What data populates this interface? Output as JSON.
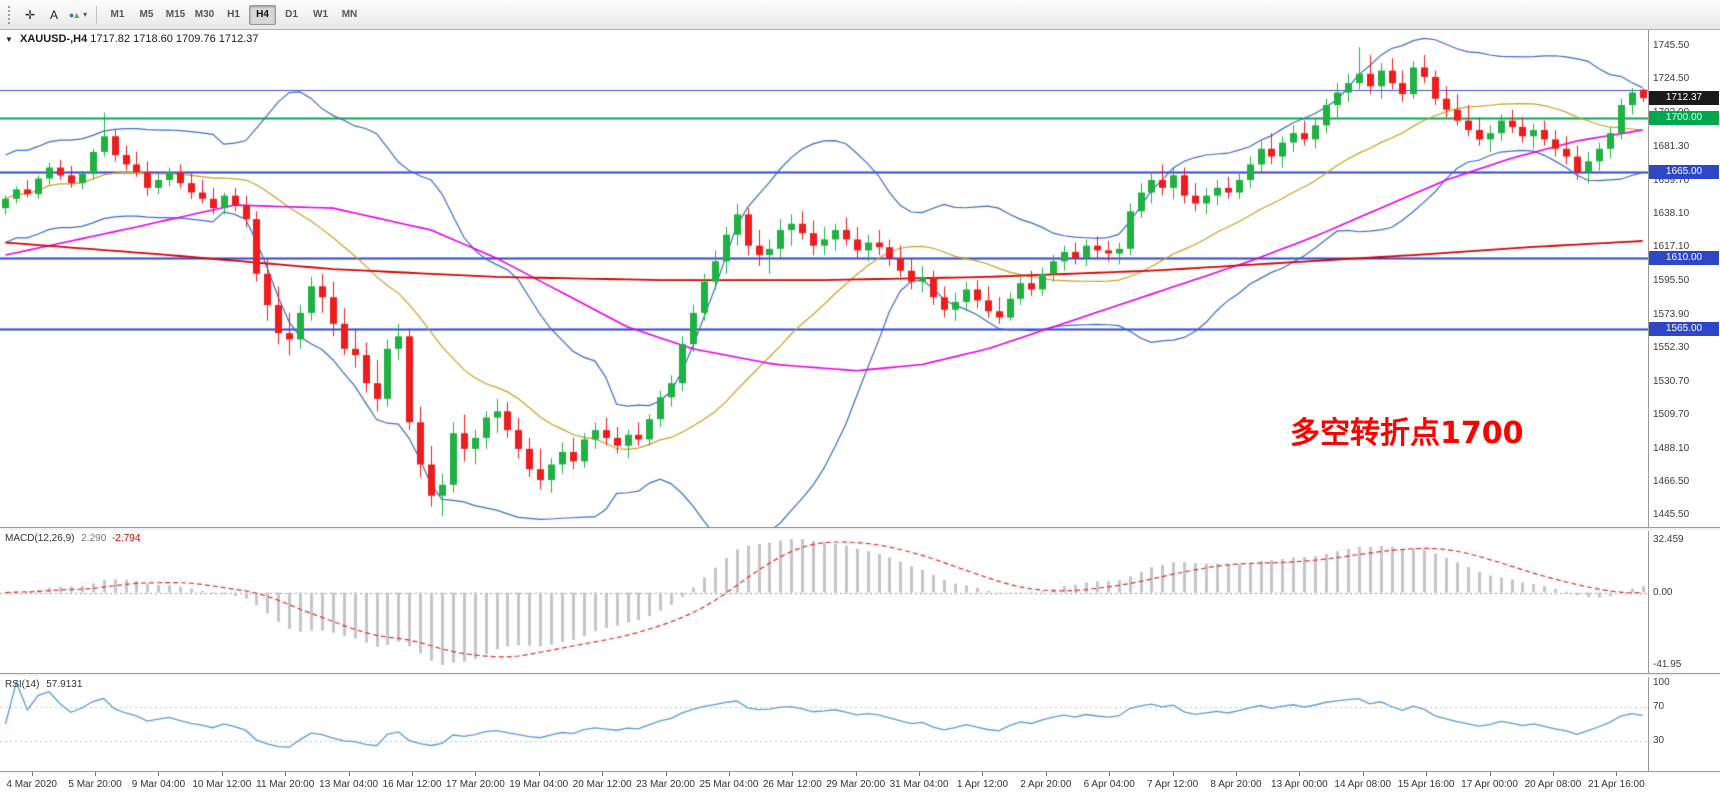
{
  "toolbar": {
    "tools": {
      "crosshair": "✛",
      "text": "A",
      "shapes_circle": "●",
      "shapes_triangle": "▲",
      "caret": "▾"
    },
    "timeframes": [
      "M1",
      "M5",
      "M15",
      "M30",
      "H1",
      "H4",
      "D1",
      "W1",
      "MN"
    ],
    "active_timeframe": "H4"
  },
  "chart": {
    "collapse_icon": "▼",
    "title_symbol": "XAUUSD-,H4",
    "title_ohlc": "1717.82 1718.60 1709.76 1712.37",
    "annotation": {
      "text": "多空转折点1700",
      "color": "#ff0000"
    },
    "badges": [
      {
        "price": 1712.37,
        "label": "1712.37",
        "bg": "#1a1a1a",
        "fg": "#ffffff"
      },
      {
        "price": 1700.0,
        "label": "1700.00",
        "bg": "#00a84d",
        "fg": "#ffffff"
      },
      {
        "price": 1665.0,
        "label": "1665.00",
        "bg": "#2e46c8",
        "fg": "#ffffff"
      },
      {
        "price": 1610.0,
        "label": "1610.00",
        "bg": "#2e46c8",
        "fg": "#ffffff"
      },
      {
        "price": 1565.0,
        "label": "1565.00",
        "bg": "#2e46c8",
        "fg": "#ffffff"
      }
    ],
    "hlines": [
      {
        "price": 1717.5,
        "color": "#4355d0",
        "width": 1
      },
      {
        "price": 1700.0,
        "color": "#00a84d",
        "width": 2
      },
      {
        "price": 1665.0,
        "color": "#2e46c8",
        "width": 2
      },
      {
        "price": 1610.0,
        "color": "#2e46c8",
        "width": 2
      },
      {
        "price": 1565.0,
        "color": "#2e46c8",
        "width": 2
      }
    ]
  },
  "chart_data": {
    "type": "candlestick",
    "symbol": "XAUUSD",
    "timeframe": "H4",
    "price_scale": {
      "min": 1438,
      "max": 1756
    },
    "price_axis_labels": [
      "1745.50",
      "1724.50",
      "1702.90",
      "1681.30",
      "1659.70",
      "1638.10",
      "1617.10",
      "1595.50",
      "1573.90",
      "1552.30",
      "1530.70",
      "1509.70",
      "1488.10",
      "1466.50",
      "1445.50"
    ],
    "time_labels": [
      "4 Mar 2020",
      "5 Mar 20:00",
      "9 Mar 04:00",
      "10 Mar 12:00",
      "11 Mar 20:00",
      "13 Mar 04:00",
      "16 Mar 12:00",
      "17 Mar 20:00",
      "19 Mar 04:00",
      "20 Mar 12:00",
      "23 Mar 20:00",
      "25 Mar 04:00",
      "26 Mar 12:00",
      "29 Mar 20:00",
      "31 Mar 04:00",
      "1 Apr 12:00",
      "2 Apr 20:00",
      "6 Apr 04:00",
      "7 Apr 12:00",
      "8 Apr 20:00",
      "13 Apr 00:00",
      "14 Apr 08:00",
      "15 Apr 16:00",
      "17 Apr 00:00",
      "20 Apr 08:00",
      "21 Apr 16:00"
    ],
    "ohlc": [
      [
        1642,
        1650,
        1638,
        1648
      ],
      [
        1648,
        1656,
        1645,
        1654
      ],
      [
        1654,
        1660,
        1649,
        1651
      ],
      [
        1651,
        1663,
        1648,
        1661
      ],
      [
        1661,
        1671,
        1657,
        1668
      ],
      [
        1668,
        1673,
        1660,
        1663
      ],
      [
        1663,
        1669,
        1655,
        1658
      ],
      [
        1658,
        1666,
        1654,
        1664
      ],
      [
        1664,
        1680,
        1661,
        1678
      ],
      [
        1678,
        1703,
        1675,
        1688
      ],
      [
        1688,
        1692,
        1672,
        1676
      ],
      [
        1676,
        1682,
        1666,
        1670
      ],
      [
        1670,
        1678,
        1662,
        1665
      ],
      [
        1665,
        1672,
        1650,
        1655
      ],
      [
        1655,
        1664,
        1651,
        1660
      ],
      [
        1660,
        1668,
        1656,
        1665
      ],
      [
        1665,
        1670,
        1655,
        1658
      ],
      [
        1658,
        1665,
        1648,
        1652
      ],
      [
        1652,
        1660,
        1645,
        1648
      ],
      [
        1648,
        1655,
        1638,
        1642
      ],
      [
        1642,
        1652,
        1638,
        1650
      ],
      [
        1650,
        1655,
        1640,
        1644
      ],
      [
        1644,
        1650,
        1630,
        1635
      ],
      [
        1635,
        1640,
        1595,
        1600
      ],
      [
        1600,
        1610,
        1570,
        1580
      ],
      [
        1580,
        1592,
        1555,
        1562
      ],
      [
        1562,
        1575,
        1548,
        1558
      ],
      [
        1558,
        1580,
        1552,
        1575
      ],
      [
        1575,
        1598,
        1570,
        1592
      ],
      [
        1592,
        1600,
        1575,
        1585
      ],
      [
        1585,
        1595,
        1560,
        1568
      ],
      [
        1568,
        1578,
        1548,
        1552
      ],
      [
        1552,
        1565,
        1540,
        1548
      ],
      [
        1548,
        1556,
        1524,
        1530
      ],
      [
        1530,
        1545,
        1512,
        1520
      ],
      [
        1520,
        1558,
        1515,
        1552
      ],
      [
        1552,
        1568,
        1545,
        1560
      ],
      [
        1560,
        1565,
        1500,
        1505
      ],
      [
        1505,
        1515,
        1470,
        1478
      ],
      [
        1478,
        1490,
        1451,
        1458
      ],
      [
        1458,
        1472,
        1445,
        1465
      ],
      [
        1465,
        1505,
        1460,
        1498
      ],
      [
        1498,
        1510,
        1480,
        1488
      ],
      [
        1488,
        1500,
        1478,
        1495
      ],
      [
        1495,
        1512,
        1488,
        1508
      ],
      [
        1508,
        1520,
        1498,
        1512
      ],
      [
        1512,
        1518,
        1495,
        1500
      ],
      [
        1500,
        1508,
        1482,
        1488
      ],
      [
        1488,
        1495,
        1470,
        1475
      ],
      [
        1475,
        1488,
        1462,
        1468
      ],
      [
        1468,
        1482,
        1460,
        1478
      ],
      [
        1478,
        1492,
        1472,
        1486
      ],
      [
        1486,
        1495,
        1475,
        1480
      ],
      [
        1480,
        1498,
        1476,
        1494
      ],
      [
        1494,
        1505,
        1488,
        1500
      ],
      [
        1500,
        1508,
        1490,
        1495
      ],
      [
        1495,
        1502,
        1485,
        1490
      ],
      [
        1490,
        1500,
        1482,
        1497
      ],
      [
        1497,
        1505,
        1490,
        1494
      ],
      [
        1494,
        1510,
        1490,
        1507
      ],
      [
        1507,
        1525,
        1502,
        1521
      ],
      [
        1521,
        1535,
        1515,
        1530
      ],
      [
        1530,
        1560,
        1525,
        1555
      ],
      [
        1555,
        1580,
        1550,
        1575
      ],
      [
        1575,
        1600,
        1570,
        1595
      ],
      [
        1595,
        1615,
        1590,
        1608
      ],
      [
        1608,
        1630,
        1600,
        1625
      ],
      [
        1625,
        1645,
        1618,
        1638
      ],
      [
        1638,
        1642,
        1612,
        1618
      ],
      [
        1618,
        1628,
        1605,
        1612
      ],
      [
        1612,
        1622,
        1600,
        1616
      ],
      [
        1616,
        1635,
        1610,
        1628
      ],
      [
        1628,
        1638,
        1618,
        1632
      ],
      [
        1632,
        1640,
        1622,
        1626
      ],
      [
        1626,
        1634,
        1612,
        1618
      ],
      [
        1618,
        1630,
        1612,
        1622
      ],
      [
        1622,
        1632,
        1615,
        1628
      ],
      [
        1628,
        1636,
        1618,
        1622
      ],
      [
        1622,
        1630,
        1610,
        1615
      ],
      [
        1615,
        1625,
        1608,
        1620
      ],
      [
        1620,
        1628,
        1612,
        1617
      ],
      [
        1617,
        1622,
        1605,
        1610
      ],
      [
        1610,
        1618,
        1598,
        1602
      ],
      [
        1602,
        1610,
        1590,
        1595
      ],
      [
        1595,
        1605,
        1588,
        1598
      ],
      [
        1598,
        1602,
        1580,
        1585
      ],
      [
        1585,
        1592,
        1572,
        1577
      ],
      [
        1577,
        1588,
        1570,
        1582
      ],
      [
        1582,
        1595,
        1576,
        1590
      ],
      [
        1590,
        1596,
        1578,
        1583
      ],
      [
        1583,
        1592,
        1572,
        1576
      ],
      [
        1576,
        1585,
        1568,
        1572
      ],
      [
        1572,
        1588,
        1570,
        1584
      ],
      [
        1584,
        1598,
        1580,
        1594
      ],
      [
        1594,
        1602,
        1586,
        1590
      ],
      [
        1590,
        1604,
        1586,
        1600
      ],
      [
        1600,
        1612,
        1595,
        1608
      ],
      [
        1608,
        1618,
        1602,
        1614
      ],
      [
        1614,
        1620,
        1606,
        1610
      ],
      [
        1610,
        1622,
        1605,
        1618
      ],
      [
        1618,
        1624,
        1610,
        1615
      ],
      [
        1615,
        1621,
        1608,
        1613
      ],
      [
        1613,
        1620,
        1606,
        1616
      ],
      [
        1616,
        1645,
        1612,
        1640
      ],
      [
        1640,
        1658,
        1636,
        1652
      ],
      [
        1652,
        1665,
        1645,
        1660
      ],
      [
        1660,
        1670,
        1650,
        1655
      ],
      [
        1655,
        1668,
        1648,
        1663
      ],
      [
        1663,
        1668,
        1645,
        1650
      ],
      [
        1650,
        1658,
        1640,
        1645
      ],
      [
        1645,
        1655,
        1638,
        1650
      ],
      [
        1650,
        1660,
        1644,
        1655
      ],
      [
        1655,
        1662,
        1648,
        1652
      ],
      [
        1652,
        1665,
        1648,
        1660
      ],
      [
        1660,
        1675,
        1655,
        1670
      ],
      [
        1670,
        1685,
        1665,
        1680
      ],
      [
        1680,
        1690,
        1670,
        1675
      ],
      [
        1675,
        1688,
        1668,
        1684
      ],
      [
        1684,
        1695,
        1678,
        1690
      ],
      [
        1690,
        1698,
        1682,
        1686
      ],
      [
        1686,
        1700,
        1680,
        1695
      ],
      [
        1695,
        1712,
        1690,
        1708
      ],
      [
        1708,
        1722,
        1700,
        1716
      ],
      [
        1716,
        1728,
        1710,
        1722
      ],
      [
        1722,
        1745,
        1718,
        1728
      ],
      [
        1728,
        1740,
        1715,
        1720
      ],
      [
        1720,
        1735,
        1712,
        1730
      ],
      [
        1730,
        1738,
        1718,
        1722
      ],
      [
        1722,
        1730,
        1710,
        1715
      ],
      [
        1715,
        1736,
        1712,
        1732
      ],
      [
        1732,
        1740,
        1722,
        1726
      ],
      [
        1726,
        1730,
        1708,
        1712
      ],
      [
        1712,
        1720,
        1700,
        1705
      ],
      [
        1705,
        1715,
        1695,
        1698
      ],
      [
        1698,
        1708,
        1688,
        1692
      ],
      [
        1692,
        1700,
        1682,
        1686
      ],
      [
        1686,
        1695,
        1678,
        1690
      ],
      [
        1690,
        1702,
        1685,
        1698
      ],
      [
        1698,
        1705,
        1690,
        1694
      ],
      [
        1694,
        1700,
        1684,
        1688
      ],
      [
        1688,
        1696,
        1680,
        1692
      ],
      [
        1692,
        1698,
        1682,
        1686
      ],
      [
        1686,
        1692,
        1675,
        1680
      ],
      [
        1680,
        1688,
        1670,
        1675
      ],
      [
        1675,
        1682,
        1660,
        1665
      ],
      [
        1665,
        1678,
        1658,
        1672
      ],
      [
        1672,
        1684,
        1666,
        1680
      ],
      [
        1680,
        1694,
        1674,
        1690
      ],
      [
        1690,
        1712,
        1686,
        1708
      ],
      [
        1708,
        1719,
        1702,
        1716
      ],
      [
        1717.8,
        1718.6,
        1709.8,
        1712.4
      ]
    ],
    "overlays": {
      "bollinger": {
        "period": 20,
        "deviation": 2,
        "color": "#3c6bc9"
      },
      "ma_mid": {
        "period": 20,
        "color": "#c9a227"
      },
      "ma50_color": "#e800e8",
      "ma50_points": [
        [
          0,
          1612
        ],
        [
          0.08,
          1630
        ],
        [
          0.14,
          1644
        ],
        [
          0.2,
          1642
        ],
        [
          0.26,
          1628
        ],
        [
          0.3,
          1610
        ],
        [
          0.34,
          1588
        ],
        [
          0.38,
          1566
        ],
        [
          0.42,
          1552
        ],
        [
          0.47,
          1542
        ],
        [
          0.52,
          1538
        ],
        [
          0.56,
          1542
        ],
        [
          0.6,
          1552
        ],
        [
          0.64,
          1566
        ],
        [
          0.68,
          1580
        ],
        [
          0.72,
          1594
        ],
        [
          0.76,
          1608
        ],
        [
          0.8,
          1624
        ],
        [
          0.84,
          1642
        ],
        [
          0.88,
          1660
        ],
        [
          0.92,
          1674
        ],
        [
          0.96,
          1685
        ],
        [
          1,
          1692
        ]
      ],
      "ma200_color": "#d40000",
      "ma200_points": [
        [
          0,
          1620
        ],
        [
          0.1,
          1612
        ],
        [
          0.2,
          1603
        ],
        [
          0.3,
          1598
        ],
        [
          0.4,
          1596
        ],
        [
          0.5,
          1596
        ],
        [
          0.6,
          1598
        ],
        [
          0.7,
          1602
        ],
        [
          0.78,
          1607
        ],
        [
          0.86,
          1612
        ],
        [
          0.93,
          1617
        ],
        [
          1,
          1621
        ]
      ]
    },
    "indicators": {
      "macd": {
        "name": "MACD(12,26,9)",
        "value_main": "2.290",
        "value_signal": "-2.794",
        "axis_labels": [
          "32.459",
          "0.00",
          "-41.95"
        ],
        "bar_color": "#c6c6c6",
        "signal_color": "#e03030"
      },
      "rsi": {
        "name": "RSI(14)",
        "value": "57.9131",
        "axis_labels": [
          "100",
          "70",
          "30"
        ],
        "levels": [
          70,
          30
        ],
        "line_color": "#5b9bd5"
      }
    },
    "candle_colors": {
      "up": "#1fb141",
      "down": "#ee1c1c"
    }
  }
}
